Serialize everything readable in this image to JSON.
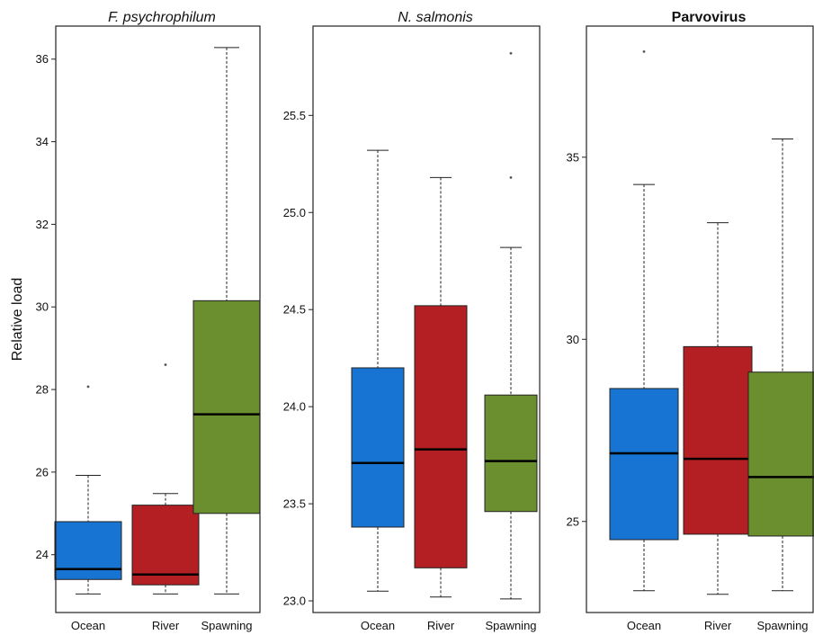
{
  "chart_data": [
    {
      "type": "box",
      "title": "F. psychrophilum",
      "title_style": "italic",
      "ylabel": "Relative load",
      "categories": [
        "Ocean",
        "River",
        "Spawning"
      ],
      "colors": [
        "#1874d2",
        "#b31f22",
        "#6b8e2f"
      ],
      "ylim": [
        22.6,
        36.8
      ],
      "yticks": [
        24,
        26,
        28,
        30,
        32,
        34,
        36
      ],
      "ytick_labels": [
        "24",
        "26",
        "28",
        "30",
        "32",
        "34",
        "36"
      ],
      "boxes": [
        {
          "category": "Ocean",
          "whisker_low": 23.05,
          "q1": 23.4,
          "median": 23.65,
          "q3": 24.8,
          "whisker_high": 25.92,
          "outliers": [
            28.07
          ]
        },
        {
          "category": "River",
          "whisker_low": 23.05,
          "q1": 23.27,
          "median": 23.52,
          "q3": 25.2,
          "whisker_high": 25.48,
          "outliers": [
            28.6
          ]
        },
        {
          "category": "Spawning",
          "whisker_low": 23.05,
          "q1": 25.0,
          "median": 27.4,
          "q3": 30.15,
          "whisker_high": 36.28,
          "outliers": []
        }
      ]
    },
    {
      "type": "box",
      "title": "N. salmonis",
      "title_style": "italic",
      "ylabel": "",
      "categories": [
        "Ocean",
        "River",
        "Spawning"
      ],
      "colors": [
        "#1874d2",
        "#b31f22",
        "#6b8e2f"
      ],
      "ylim": [
        22.94,
        25.96
      ],
      "yticks": [
        23.0,
        23.5,
        24.0,
        24.5,
        25.0,
        25.5
      ],
      "ytick_labels": [
        "23.0",
        "23.5",
        "24.0",
        "24.5",
        "25.0",
        "25.5"
      ],
      "boxes": [
        {
          "category": "Ocean",
          "whisker_low": 23.05,
          "q1": 23.38,
          "median": 23.71,
          "q3": 24.2,
          "whisker_high": 25.32,
          "outliers": []
        },
        {
          "category": "River",
          "whisker_low": 23.02,
          "q1": 23.17,
          "median": 23.78,
          "q3": 24.52,
          "whisker_high": 25.18,
          "outliers": []
        },
        {
          "category": "Spawning",
          "whisker_low": 23.01,
          "q1": 23.46,
          "median": 23.72,
          "q3": 24.06,
          "whisker_high": 24.82,
          "outliers": [
            25.18,
            25.82
          ]
        }
      ]
    },
    {
      "type": "box",
      "title": "Parvovirus",
      "title_style": "bold",
      "ylabel": "",
      "categories": [
        "Ocean",
        "River",
        "Spawning"
      ],
      "colors": [
        "#1874d2",
        "#b31f22",
        "#6b8e2f"
      ],
      "ylim": [
        22.5,
        38.6
      ],
      "yticks": [
        25,
        30,
        35
      ],
      "ytick_labels": [
        "25",
        "30",
        "35"
      ],
      "boxes": [
        {
          "category": "Ocean",
          "whisker_low": 23.1,
          "q1": 24.5,
          "median": 26.87,
          "q3": 28.65,
          "whisker_high": 34.25,
          "outliers": [
            37.9
          ]
        },
        {
          "category": "River",
          "whisker_low": 23.0,
          "q1": 24.65,
          "median": 26.72,
          "q3": 29.8,
          "whisker_high": 33.2,
          "outliers": []
        },
        {
          "category": "Spawning",
          "whisker_low": 23.1,
          "q1": 24.6,
          "median": 26.22,
          "q3": 29.1,
          "whisker_high": 35.5,
          "outliers": []
        }
      ]
    }
  ]
}
